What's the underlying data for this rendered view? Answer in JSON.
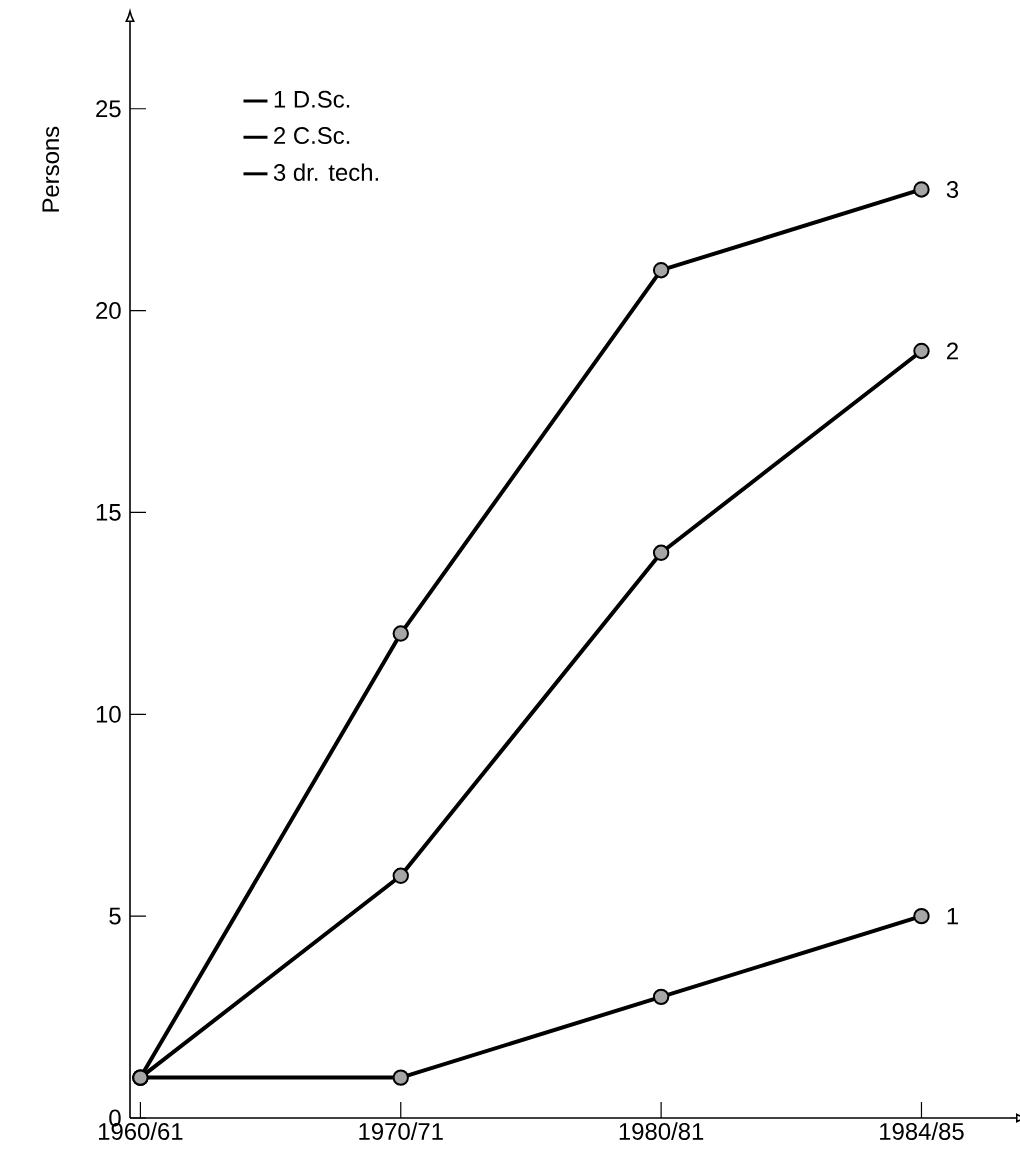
{
  "chart_data": {
    "type": "line",
    "ylabel": "Persons",
    "categories": [
      "1960/61",
      "1970/71",
      "1980/81",
      "1984/85"
    ],
    "series": [
      {
        "name": "1 D.Sc.",
        "color": "#000000",
        "values": [
          1,
          1,
          3,
          5
        ]
      },
      {
        "name": "2 C.Sc.",
        "color": "#000000",
        "values": [
          1,
          6,
          14,
          19
        ]
      },
      {
        "name": "3 dr. tech.",
        "color": "#000000",
        "values": [
          1,
          12,
          21,
          23
        ]
      }
    ],
    "annotations": [
      {
        "text": "1",
        "x": "1984/85",
        "y": 5
      },
      {
        "text": "2",
        "x": "1984/85",
        "y": 19
      },
      {
        "text": "3",
        "x": "1984/85",
        "y": 23
      }
    ],
    "ylim": [
      0,
      27
    ],
    "yticks": [
      0,
      5,
      10,
      15,
      20,
      25
    ],
    "legend": "top left",
    "marker": "circle",
    "line_style": "solid",
    "grid": false
  }
}
